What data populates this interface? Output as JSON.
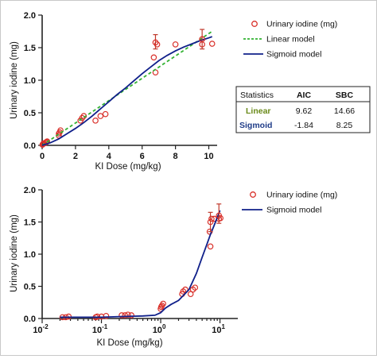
{
  "chart_data": [
    {
      "type": "scatter",
      "xlabel": "KI Dose (mg/kg)",
      "ylabel": "Urinary iodine (mg)",
      "xlim": [
        0,
        10.5
      ],
      "ylim": [
        0,
        2.0
      ],
      "xticks": [
        "0",
        "2",
        "4",
        "6",
        "8",
        "10"
      ],
      "yticks": [
        "0.0",
        "0.5",
        "1.0",
        "1.5",
        "2.0"
      ],
      "legend_position": "top-right",
      "legend": {
        "points": "Urinary iodine (mg)",
        "linear": "Linear model",
        "sigmoid": "Sigmoid model"
      },
      "series": [
        {
          "name": "Urinary iodine (mg)",
          "kind": "points",
          "color": "#d9302a",
          "x": [
            0.02,
            0.05,
            0.08,
            0.12,
            0.2,
            0.25,
            0.3,
            1.0,
            1.0,
            1.05,
            1.1,
            2.3,
            2.4,
            2.5,
            3.2,
            3.5,
            3.8,
            6.7,
            6.8,
            6.9,
            8.0,
            9.6,
            10.2
          ],
          "y": [
            0.01,
            0.02,
            0.03,
            0.03,
            0.04,
            0.05,
            0.06,
            0.15,
            0.18,
            0.2,
            0.23,
            0.38,
            0.42,
            0.45,
            0.38,
            0.45,
            0.48,
            1.35,
            1.12,
            1.55,
            1.55,
            1.55,
            1.56
          ]
        },
        {
          "name": "Linear model",
          "kind": "dashed-line",
          "color": "#33b233",
          "x": [
            0,
            10.2
          ],
          "y": [
            0.0,
            1.75
          ]
        },
        {
          "name": "Sigmoid model",
          "kind": "line",
          "color": "#10208a",
          "x": [
            0,
            0.5,
            1,
            1.5,
            2,
            2.5,
            3,
            3.5,
            4,
            4.5,
            5,
            5.5,
            6,
            6.5,
            7,
            7.5,
            8,
            8.5,
            9,
            9.5,
            10,
            10.2
          ],
          "y": [
            0.0,
            0.04,
            0.1,
            0.18,
            0.26,
            0.35,
            0.45,
            0.56,
            0.67,
            0.78,
            0.88,
            0.99,
            1.1,
            1.2,
            1.3,
            1.38,
            1.45,
            1.51,
            1.56,
            1.61,
            1.65,
            1.67
          ]
        }
      ],
      "error_bars": [
        {
          "x": 6.8,
          "y": 1.58,
          "low": 1.48,
          "high": 1.7
        },
        {
          "x": 9.6,
          "y": 1.63,
          "low": 1.48,
          "high": 1.78
        }
      ],
      "stats_table": {
        "header": [
          "Statistics",
          "AIC",
          "SBC"
        ],
        "rows": [
          {
            "label": "Linear",
            "aic": "9.62",
            "sbc": "14.66"
          },
          {
            "label": "Sigmoid",
            "aic": "-1.84",
            "sbc": "8.25"
          }
        ],
        "label_colors": {
          "Linear": "#6a8a1a",
          "Sigmoid": "#1f3c88"
        }
      }
    },
    {
      "type": "scatter",
      "xlabel": "KI Dose (mg/kg)",
      "ylabel": "Urinary iodine (mg)",
      "xscale": "log",
      "xlim": [
        0.01,
        20
      ],
      "ylim": [
        0,
        2.0
      ],
      "xticks": [
        {
          "base": "10",
          "exp": "-2"
        },
        {
          "base": "10",
          "exp": "-1"
        },
        {
          "base": "10",
          "exp": "0"
        },
        {
          "base": "10",
          "exp": "1"
        }
      ],
      "yticks": [
        "0.0",
        "0.5",
        "1.0",
        "1.5",
        "2.0"
      ],
      "legend_position": "top-right",
      "legend": {
        "points": "Urinary iodine (mg)",
        "sigmoid": "Sigmoid model"
      },
      "series": [
        {
          "name": "Urinary iodine (mg)",
          "kind": "points",
          "color": "#d9302a",
          "x": [
            0.022,
            0.025,
            0.028,
            0.08,
            0.085,
            0.1,
            0.12,
            0.22,
            0.25,
            0.28,
            0.32,
            1.0,
            1.02,
            1.05,
            1.1,
            2.3,
            2.4,
            2.6,
            3.2,
            3.5,
            3.8,
            6.7,
            6.9,
            7.2,
            8.0,
            9.6,
            10.2
          ],
          "y": [
            0.02,
            0.02,
            0.03,
            0.02,
            0.03,
            0.03,
            0.04,
            0.05,
            0.05,
            0.06,
            0.05,
            0.15,
            0.18,
            0.2,
            0.23,
            0.38,
            0.42,
            0.45,
            0.38,
            0.45,
            0.48,
            1.35,
            1.12,
            1.55,
            1.55,
            1.55,
            1.56
          ]
        },
        {
          "name": "Sigmoid model",
          "kind": "line",
          "color": "#10208a",
          "x": [
            0.02,
            0.05,
            0.1,
            0.2,
            0.5,
            0.8,
            1.0,
            1.2,
            1.5,
            2.0,
            3.0,
            4.0,
            5.0,
            6.0,
            7.0,
            8.0,
            9.0,
            10.0
          ],
          "y": [
            0.02,
            0.02,
            0.02,
            0.03,
            0.04,
            0.05,
            0.09,
            0.16,
            0.22,
            0.28,
            0.45,
            0.7,
            0.95,
            1.15,
            1.32,
            1.45,
            1.57,
            1.68
          ]
        }
      ],
      "error_bars": [
        {
          "x": 6.9,
          "y": 1.5,
          "low": 1.35,
          "high": 1.65
        },
        {
          "x": 9.6,
          "y": 1.6,
          "low": 1.48,
          "high": 1.78
        }
      ]
    }
  ]
}
